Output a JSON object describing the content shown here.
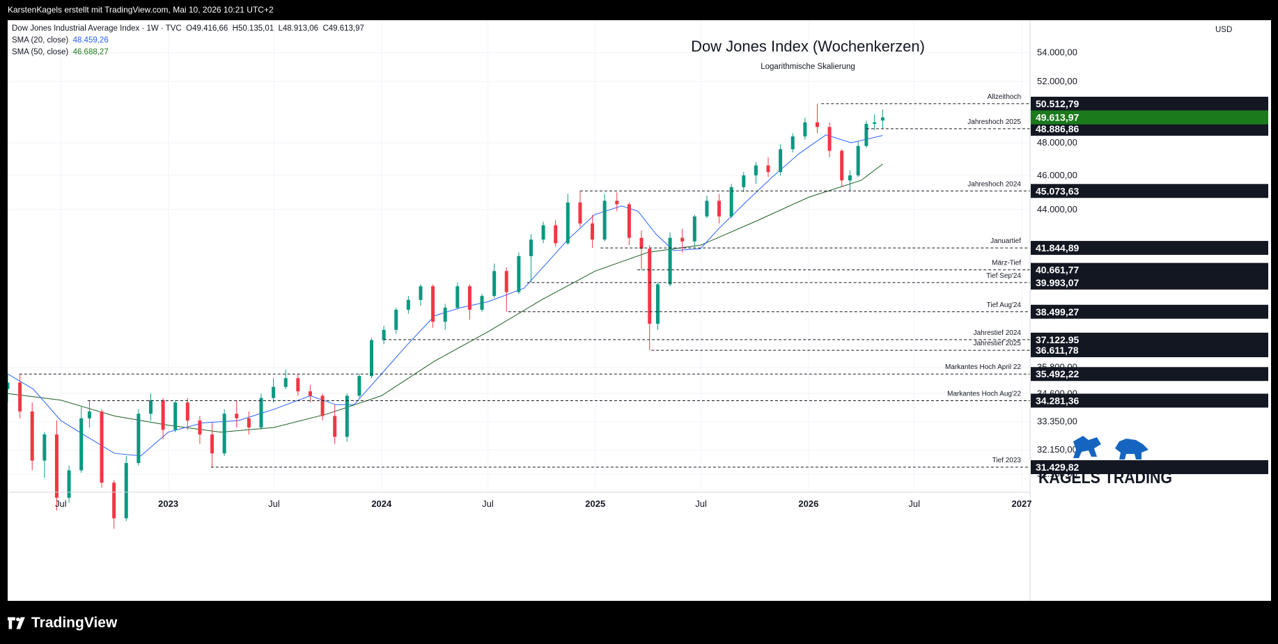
{
  "header": {
    "attribution": "KarstenKagels erstellt mit TradingView.com, Mai 10, 2026 10:21 UTC+2"
  },
  "legend": {
    "symbol_line": "Dow Jones Industrial Average Index · 1W · TVC",
    "open": "O49.416,66",
    "high": "H50.135,01",
    "low": "L48.913,06",
    "close": "C49.613,97",
    "sma20_label": "SMA (20, close)",
    "sma20_value": "48.459,26",
    "sma50_label": "SMA (50, close)",
    "sma50_value": "46.688,27"
  },
  "footer": {
    "brand": "TradingView"
  },
  "logo": {
    "text": "KAGELS TRADING"
  },
  "colors": {
    "up": "#089981",
    "down": "#f23645",
    "sma20": "#2962ff",
    "sma50": "#1b5e20",
    "current_price_bg": "#1b7a1b",
    "label_bg": "#131722",
    "logo_blue": "#1565c0"
  },
  "chart_data": {
    "type": "candlestick",
    "title": "Dow Jones Index (Wochenkerzen)",
    "subtitle": "Logarithmische Skalierung",
    "currency": "USD",
    "scale": "log",
    "grid": true,
    "x_ticks": [
      {
        "label": "Jul",
        "date": "2022-07-01",
        "major": false
      },
      {
        "label": "2023",
        "date": "2023-01-01",
        "major": true
      },
      {
        "label": "Jul",
        "date": "2023-07-01",
        "major": false
      },
      {
        "label": "2024",
        "date": "2024-01-01",
        "major": true
      },
      {
        "label": "Jul",
        "date": "2024-07-01",
        "major": false
      },
      {
        "label": "2025",
        "date": "2025-01-01",
        "major": true
      },
      {
        "label": "Jul",
        "date": "2025-07-01",
        "major": false
      },
      {
        "label": "2026",
        "date": "2026-01-01",
        "major": true
      },
      {
        "label": "Jul",
        "date": "2026-07-01",
        "major": false
      },
      {
        "label": "2027",
        "date": "2027-01-01",
        "major": true
      }
    ],
    "y_ticks": [
      {
        "value": 54000,
        "label": "54.000,00"
      },
      {
        "value": 52000,
        "label": "52.000,00"
      },
      {
        "value": 48000,
        "label": "48.000,00"
      },
      {
        "value": 46000,
        "label": "46.000,00"
      },
      {
        "value": 44000,
        "label": "44.000,00"
      },
      {
        "value": 35800,
        "label": "35.800,00"
      },
      {
        "value": 34600,
        "label": "34.600,00"
      },
      {
        "value": 33350,
        "label": "33.350,00"
      },
      {
        "value": 32150,
        "label": "32.150,00"
      },
      {
        "value": 31150,
        "label": "31.150,00"
      }
    ],
    "levels": [
      {
        "name": "Allzeithoch",
        "value": 50512.79,
        "label": "50.512,79",
        "start": "2026-01-23"
      },
      {
        "name": "Jahreshoch 2025",
        "value": 48886.86,
        "label": "48.886,86",
        "start": "2026-04-10"
      },
      {
        "name": "Jahreshoch 2024",
        "value": 45073.63,
        "label": "45.073,63",
        "start": "2024-12-06"
      },
      {
        "name": "Januartief",
        "value": 41844.89,
        "label": "41.844,89",
        "start": "2025-01-10"
      },
      {
        "name": "März-Tief",
        "value": 40661.77,
        "label": "40.661,77",
        "start": "2025-03-14"
      },
      {
        "name": "Tief Sep'24",
        "value": 39993.07,
        "label": "39.993,07",
        "start": "2024-09-06"
      },
      {
        "name": "Tief Aug'24",
        "value": 38499.27,
        "label": "38.499,27",
        "start": "2024-08-05"
      },
      {
        "name": "Jahrestief 2024",
        "value": 37122.95,
        "label": "37.122,95",
        "start": "2024-01-05"
      },
      {
        "name": "Jahrestief 2025",
        "value": 36611.78,
        "label": "36.611,78",
        "start": "2025-04-07"
      },
      {
        "name": "Markantes Hoch April 22",
        "value": 35492.22,
        "label": "35.492,22",
        "start": "2022-04-21"
      },
      {
        "name": "Markantes Hoch Aug'22",
        "value": 34281.36,
        "label": "34.281,36",
        "start": "2022-08-16"
      },
      {
        "name": "Tief 2023",
        "value": 31429.82,
        "label": "31.429,82",
        "start": "2023-03-15"
      }
    ],
    "current_price": {
      "value": 49613.97,
      "label": "49.613,97"
    },
    "series": [
      {
        "name": "SMA (20, close)",
        "kind": "sma",
        "color": "#2962ff",
        "points": [
          [
            "2022-04-01",
            35500
          ],
          [
            "2022-05-15",
            34800
          ],
          [
            "2022-07-01",
            33400
          ],
          [
            "2022-08-15",
            32700
          ],
          [
            "2022-10-01",
            32000
          ],
          [
            "2022-11-15",
            31900
          ],
          [
            "2023-01-01",
            32900
          ],
          [
            "2023-03-01",
            33300
          ],
          [
            "2023-05-01",
            33400
          ],
          [
            "2023-07-01",
            33900
          ],
          [
            "2023-09-01",
            34500
          ],
          [
            "2023-10-15",
            34100
          ],
          [
            "2023-11-15",
            34100
          ],
          [
            "2024-01-01",
            35500
          ],
          [
            "2024-02-15",
            36900
          ],
          [
            "2024-04-01",
            38300
          ],
          [
            "2024-05-15",
            38700
          ],
          [
            "2024-07-01",
            39000
          ],
          [
            "2024-09-01",
            39700
          ],
          [
            "2024-10-15",
            41200
          ],
          [
            "2024-11-15",
            42300
          ],
          [
            "2024-12-31",
            43700
          ],
          [
            "2025-02-15",
            44200
          ],
          [
            "2025-03-15",
            43900
          ],
          [
            "2025-04-15",
            42600
          ],
          [
            "2025-05-15",
            41700
          ],
          [
            "2025-06-30",
            41800
          ],
          [
            "2025-07-31",
            42900
          ],
          [
            "2025-09-15",
            44400
          ],
          [
            "2025-10-31",
            45900
          ],
          [
            "2025-12-15",
            47300
          ],
          [
            "2026-01-31",
            48500
          ],
          [
            "2026-03-15",
            48000
          ],
          [
            "2026-05-08",
            48459
          ]
        ]
      },
      {
        "name": "SMA (50, close)",
        "kind": "sma",
        "color": "#1b5e20",
        "points": [
          [
            "2022-04-01",
            34600
          ],
          [
            "2022-07-01",
            34300
          ],
          [
            "2022-10-01",
            33600
          ],
          [
            "2023-01-01",
            33200
          ],
          [
            "2023-04-01",
            32900
          ],
          [
            "2023-07-01",
            33100
          ],
          [
            "2023-10-01",
            33700
          ],
          [
            "2024-01-01",
            34500
          ],
          [
            "2024-04-01",
            36100
          ],
          [
            "2024-07-01",
            37500
          ],
          [
            "2024-10-01",
            39100
          ],
          [
            "2025-01-01",
            40600
          ],
          [
            "2025-04-01",
            41600
          ],
          [
            "2025-07-01",
            42000
          ],
          [
            "2025-10-01",
            43300
          ],
          [
            "2026-01-01",
            44700
          ],
          [
            "2026-04-01",
            45700
          ],
          [
            "2026-05-08",
            46688
          ]
        ]
      }
    ],
    "candles": [
      [
        "2022-04-01",
        34800,
        35500,
        34200,
        35100
      ],
      [
        "2022-04-22",
        35100,
        35492,
        33500,
        33800
      ],
      [
        "2022-05-13",
        33800,
        34200,
        31300,
        31700
      ],
      [
        "2022-06-03",
        31700,
        32900,
        31000,
        32800
      ],
      [
        "2022-06-24",
        32800,
        33400,
        29700,
        30200
      ],
      [
        "2022-07-15",
        30200,
        31500,
        30000,
        31300
      ],
      [
        "2022-08-05",
        31300,
        34000,
        31200,
        33500
      ],
      [
        "2022-08-19",
        33500,
        34281,
        33100,
        33800
      ],
      [
        "2022-09-09",
        33800,
        33900,
        30600,
        30800
      ],
      [
        "2022-09-30",
        30800,
        30900,
        29000,
        29400
      ],
      [
        "2022-10-21",
        29400,
        31900,
        29300,
        31600
      ],
      [
        "2022-11-11",
        31600,
        33900,
        31500,
        33700
      ],
      [
        "2022-12-02",
        33700,
        34600,
        33400,
        34300
      ],
      [
        "2022-12-23",
        34300,
        34400,
        32600,
        33000
      ],
      [
        "2023-01-13",
        33000,
        34300,
        32900,
        34200
      ],
      [
        "2023-02-03",
        34200,
        34400,
        33000,
        33400
      ],
      [
        "2023-02-24",
        33400,
        33600,
        32400,
        32800
      ],
      [
        "2023-03-17",
        32800,
        33300,
        31430,
        32000
      ],
      [
        "2023-04-07",
        32000,
        33900,
        31900,
        33700
      ],
      [
        "2023-04-28",
        33700,
        34300,
        33100,
        33500
      ],
      [
        "2023-05-19",
        33500,
        33800,
        32800,
        33100
      ],
      [
        "2023-06-09",
        33100,
        34600,
        33000,
        34400
      ],
      [
        "2023-06-30",
        34400,
        35300,
        34200,
        34900
      ],
      [
        "2023-07-21",
        34900,
        35700,
        34800,
        35300
      ],
      [
        "2023-08-11",
        35300,
        35500,
        34500,
        34700
      ],
      [
        "2023-09-01",
        34700,
        35000,
        34200,
        34500
      ],
      [
        "2023-09-22",
        34500,
        34600,
        33400,
        33600
      ],
      [
        "2023-10-13",
        33600,
        34100,
        32400,
        32700
      ],
      [
        "2023-11-03",
        32700,
        34600,
        32500,
        34500
      ],
      [
        "2023-11-24",
        34500,
        35500,
        34400,
        35400
      ],
      [
        "2023-12-15",
        35400,
        37200,
        35300,
        37100
      ],
      [
        "2024-01-05",
        37100,
        37800,
        36900,
        37600
      ],
      [
        "2024-01-26",
        37600,
        38700,
        37400,
        38600
      ],
      [
        "2024-02-16",
        38600,
        39300,
        38400,
        39100
      ],
      [
        "2024-03-08",
        39100,
        39900,
        38800,
        39800
      ],
      [
        "2024-03-29",
        39800,
        39900,
        37700,
        38000
      ],
      [
        "2024-04-19",
        38000,
        38900,
        37600,
        38700
      ],
      [
        "2024-05-10",
        38700,
        40000,
        38600,
        39800
      ],
      [
        "2024-05-31",
        39800,
        39900,
        38100,
        38600
      ],
      [
        "2024-06-21",
        38600,
        39400,
        38500,
        39300
      ],
      [
        "2024-07-12",
        39300,
        41000,
        39200,
        40600
      ],
      [
        "2024-08-02",
        40600,
        40800,
        38499,
        39500
      ],
      [
        "2024-08-23",
        39500,
        41600,
        39400,
        41400
      ],
      [
        "2024-09-13",
        41400,
        42600,
        39993,
        42300
      ],
      [
        "2024-10-04",
        42300,
        43300,
        42100,
        43100
      ],
      [
        "2024-10-25",
        43100,
        43400,
        41900,
        42100
      ],
      [
        "2024-11-15",
        42100,
        44900,
        42000,
        44400
      ],
      [
        "2024-12-06",
        44400,
        45074,
        43000,
        43200
      ],
      [
        "2024-12-27",
        43200,
        43700,
        41845,
        42300
      ],
      [
        "2025-01-17",
        42300,
        44900,
        42200,
        44500
      ],
      [
        "2025-02-07",
        44500,
        45000,
        43900,
        44300
      ],
      [
        "2025-02-28",
        44300,
        44400,
        42000,
        42400
      ],
      [
        "2025-03-21",
        42400,
        42800,
        40662,
        41800
      ],
      [
        "2025-04-04",
        41800,
        42000,
        36612,
        37900
      ],
      [
        "2025-04-18",
        37900,
        40000,
        37600,
        39900
      ],
      [
        "2025-05-09",
        39900,
        42700,
        39800,
        42400
      ],
      [
        "2025-05-30",
        42400,
        42900,
        41600,
        42200
      ],
      [
        "2025-06-20",
        42200,
        43700,
        41900,
        43600
      ],
      [
        "2025-07-11",
        43600,
        44800,
        43500,
        44500
      ],
      [
        "2025-08-01",
        44500,
        44900,
        43200,
        43600
      ],
      [
        "2025-08-22",
        43600,
        45500,
        43500,
        45300
      ],
      [
        "2025-09-12",
        45300,
        46200,
        45000,
        46000
      ],
      [
        "2025-10-03",
        46000,
        46800,
        45500,
        46600
      ],
      [
        "2025-10-24",
        46600,
        47100,
        45900,
        46200
      ],
      [
        "2025-11-14",
        46200,
        47900,
        46000,
        47600
      ],
      [
        "2025-12-05",
        47600,
        48600,
        47400,
        48400
      ],
      [
        "2025-12-26",
        48400,
        49600,
        48200,
        49300
      ],
      [
        "2026-01-16",
        49300,
        50513,
        48600,
        49000
      ],
      [
        "2026-02-06",
        49000,
        49300,
        47100,
        47500
      ],
      [
        "2026-02-27",
        47500,
        47600,
        45300,
        45700
      ],
      [
        "2026-03-13",
        45700,
        46300,
        45074,
        46000
      ],
      [
        "2026-03-27",
        46000,
        48100,
        45900,
        47800
      ],
      [
        "2026-04-10",
        47800,
        49400,
        47700,
        49200
      ],
      [
        "2026-04-24",
        49200,
        49800,
        48800,
        49300
      ],
      [
        "2026-05-08",
        49417,
        50135,
        48913,
        49614
      ]
    ]
  }
}
